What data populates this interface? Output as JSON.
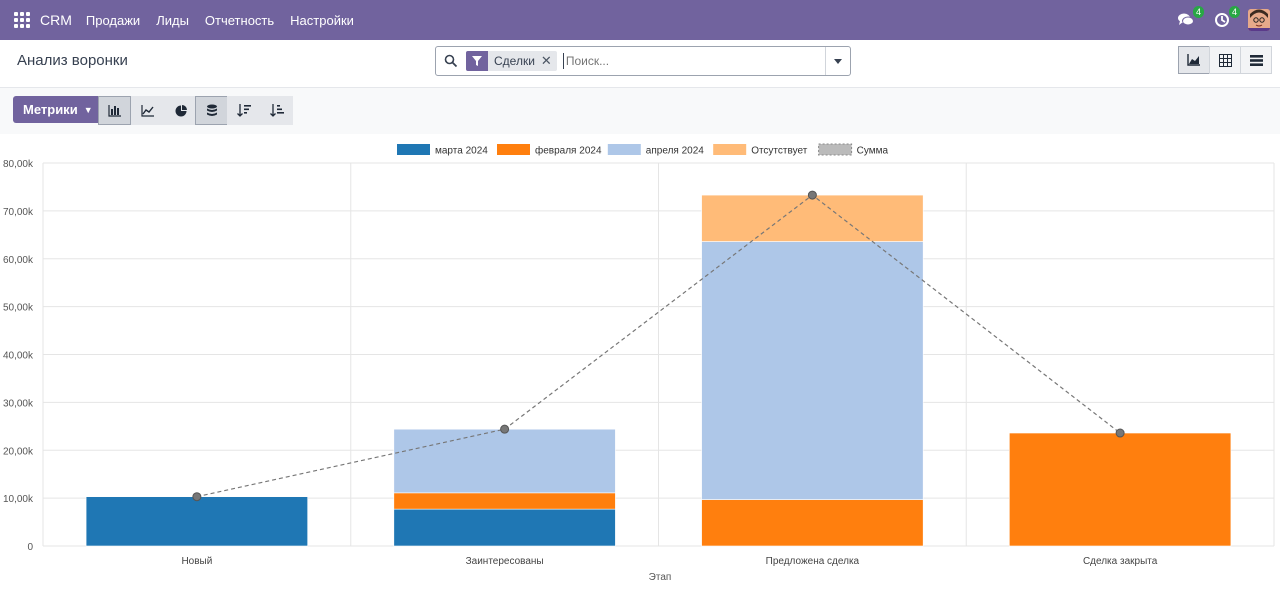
{
  "navbar": {
    "brand": "CRM",
    "menu": [
      "Продажи",
      "Лиды",
      "Отчетность",
      "Настройки"
    ],
    "messages_count": "4",
    "activities_count": "4"
  },
  "control": {
    "title": "Анализ воронки",
    "facet": "Сделки",
    "search_placeholder": "Поиск...",
    "metrics_label": "Метрики"
  },
  "chart_data": {
    "type": "bar",
    "stacked": true,
    "xlabel": "Этап",
    "ylabel": "",
    "ylim": [
      0,
      80000
    ],
    "yticks": [
      "0",
      "10,00k",
      "20,00k",
      "30,00k",
      "40,00k",
      "50,00k",
      "60,00k",
      "70,00k",
      "80,00k"
    ],
    "legend_position": "top",
    "categories": [
      "Новый",
      "Заинтересованы",
      "Предложена сделка",
      "Сделка закрыта"
    ],
    "series": [
      {
        "name": "марта 2024",
        "color": "#1f77b4",
        "values": [
          10300,
          7700,
          0,
          0
        ]
      },
      {
        "name": "февраля 2024",
        "color": "#ff7f0e",
        "values": [
          0,
          3400,
          9700,
          23600
        ]
      },
      {
        "name": "апреля 2024",
        "color": "#aec7e8",
        "values": [
          0,
          13300,
          53900,
          0
        ]
      },
      {
        "name": "Отсутствует",
        "color": "#ffbb78",
        "values": [
          0,
          0,
          9700,
          0
        ]
      }
    ],
    "sum_series": {
      "name": "Сумма",
      "values": [
        10300,
        24400,
        73300,
        23600
      ]
    }
  }
}
